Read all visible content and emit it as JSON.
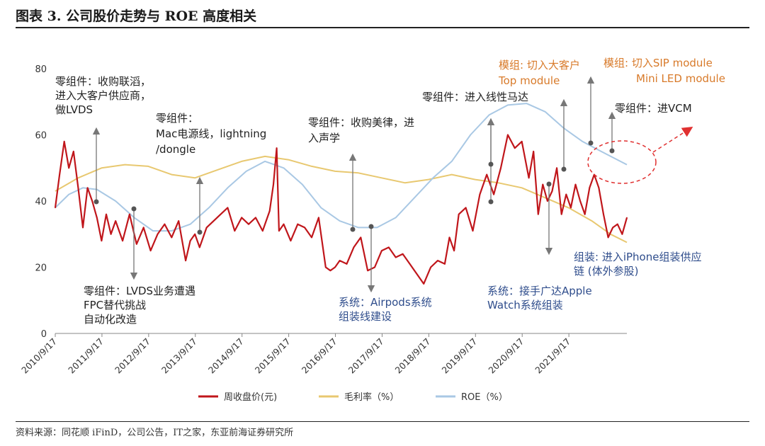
{
  "header": {
    "title": "图表 3.  公司股价走势与 ROE 高度相关"
  },
  "footer": {
    "source": "资料来源：同花顺 iFinD，公司公告，IT之家，东亚前海证券研究所"
  },
  "chart_data": {
    "type": "line",
    "title": "",
    "xlabel": "",
    "ylabel": "",
    "ylim": [
      0,
      80
    ],
    "yticks": [
      0,
      20,
      40,
      60,
      80
    ],
    "xlim": [
      2010.708,
      2022.95
    ],
    "x_tick_labels": [
      "2010/9/17",
      "2011/9/17",
      "2012/9/17",
      "2013/9/17",
      "2014/9/17",
      "2015/9/17",
      "2016/9/17",
      "2017/9/17",
      "2018/9/17",
      "2019/9/17",
      "2020/9/17",
      "2021/9/17"
    ],
    "grid": false,
    "legend_position": "bottom",
    "series": [
      {
        "name": "周收盘价(元)",
        "color": "#c0161b",
        "x": [
          2010.708,
          2010.8,
          2010.9,
          2011.0,
          2011.1,
          2011.2,
          2011.3,
          2011.4,
          2011.5,
          2011.6,
          2011.7,
          2011.8,
          2011.9,
          2012.0,
          2012.15,
          2012.3,
          2012.45,
          2012.6,
          2012.75,
          2012.9,
          2013.05,
          2013.2,
          2013.35,
          2013.5,
          2013.6,
          2013.7,
          2013.8,
          2013.95,
          2014.1,
          2014.25,
          2014.4,
          2014.55,
          2014.7,
          2014.85,
          2015.0,
          2015.15,
          2015.3,
          2015.38,
          2015.45,
          2015.5,
          2015.6,
          2015.75,
          2015.9,
          2016.05,
          2016.2,
          2016.35,
          2016.5,
          2016.6,
          2016.7,
          2016.8,
          2016.95,
          2017.1,
          2017.25,
          2017.4,
          2017.55,
          2017.7,
          2017.85,
          2018.0,
          2018.15,
          2018.3,
          2018.45,
          2018.6,
          2018.75,
          2018.9,
          2019.05,
          2019.15,
          2019.25,
          2019.35,
          2019.5,
          2019.65,
          2019.8,
          2019.95,
          2020.1,
          2020.25,
          2020.4,
          2020.55,
          2020.7,
          2020.85,
          2020.95,
          2021.05,
          2021.15,
          2021.25,
          2021.35,
          2021.45,
          2021.55,
          2021.65,
          2021.75,
          2021.85,
          2021.95,
          2022.05,
          2022.15,
          2022.25,
          2022.35,
          2022.45,
          2022.55,
          2022.65,
          2022.75,
          2022.85,
          2022.95
        ],
        "values": [
          38,
          48,
          58,
          50,
          55,
          44,
          32,
          44,
          40,
          35,
          28,
          36,
          30,
          34,
          28,
          36,
          27,
          32,
          25,
          30,
          33,
          29,
          34,
          22,
          28,
          30,
          26,
          32,
          34,
          36,
          38,
          31,
          35,
          33,
          35,
          31,
          37,
          45,
          56,
          31,
          33,
          28,
          33,
          32,
          29,
          35,
          20,
          19,
          20,
          22,
          21,
          26,
          29,
          19,
          20,
          25,
          26,
          23,
          24,
          21,
          18,
          15,
          20,
          22,
          21,
          29,
          25,
          36,
          38,
          31,
          42,
          48,
          42,
          50,
          60,
          56,
          58,
          47,
          55,
          36,
          45,
          40,
          43,
          50,
          36,
          42,
          38,
          45,
          40,
          36,
          44,
          48,
          44,
          36,
          29,
          32,
          33,
          30,
          35
        ]
      },
      {
        "name": "毛利率（%）",
        "color": "#e8c870",
        "x": [
          2010.708,
          2011.2,
          2011.7,
          2012.2,
          2012.7,
          2013.2,
          2013.7,
          2014.2,
          2014.7,
          2015.2,
          2015.7,
          2016.2,
          2016.7,
          2017.2,
          2017.7,
          2018.2,
          2018.7,
          2019.2,
          2019.7,
          2020.2,
          2020.7,
          2021.2,
          2021.7,
          2022.2,
          2022.6,
          2022.95
        ],
        "values": [
          43,
          47,
          50,
          51,
          50.5,
          48,
          47,
          49.5,
          52,
          53.5,
          52.5,
          50.5,
          49,
          48.5,
          47,
          45.5,
          46.5,
          48,
          46.5,
          45.5,
          44,
          41,
          38,
          34,
          30,
          27.5
        ]
      },
      {
        "name": "ROE（%）",
        "color": "#a9c8e4",
        "x": [
          2010.708,
          2011.0,
          2011.3,
          2011.6,
          2012.0,
          2012.4,
          2012.8,
          2013.2,
          2013.6,
          2014.0,
          2014.4,
          2014.8,
          2015.2,
          2015.6,
          2016.0,
          2016.4,
          2016.8,
          2017.2,
          2017.6,
          2018.0,
          2018.4,
          2018.8,
          2019.2,
          2019.6,
          2020.0,
          2020.4,
          2020.8,
          2021.2,
          2021.6,
          2022.0,
          2022.4,
          2022.95
        ],
        "values": [
          38,
          42,
          44,
          43.5,
          40,
          35,
          31,
          31,
          33,
          38,
          44,
          49,
          52,
          50,
          45,
          38,
          34,
          32,
          32,
          35,
          41,
          47,
          52,
          60,
          66,
          69,
          69.5,
          67,
          62,
          58,
          55,
          51
        ]
      }
    ]
  },
  "annotations": {
    "a1": [
      "零组件：收购联滔，",
      "进入大客户供应商，",
      "做LVDS"
    ],
    "a2": [
      "零组件：LVDS业务遭遇",
      "FPC替代挑战",
      "自动化改造"
    ],
    "a3": [
      "零组件：",
      "Mac电源线，lightning",
      "/dongle"
    ],
    "a4": [
      "零组件：收购美律，进",
      "入声学"
    ],
    "a5": [
      "系统：Airpods系统",
      "组装线建设"
    ],
    "a6": [
      "零组件：进入线性马达"
    ],
    "a7": [
      "系统：接手广达Apple",
      "Watch系统组装"
    ],
    "a8": [
      "模组: 切入大客户",
      "Top module"
    ],
    "a9": [
      "模组: 切入SIP module",
      "Mini LED module"
    ],
    "a10": [
      "零组件：进VCM"
    ],
    "a11": [
      "组装: 进入iPhone组装供应",
      "链 (体外参股)"
    ]
  }
}
